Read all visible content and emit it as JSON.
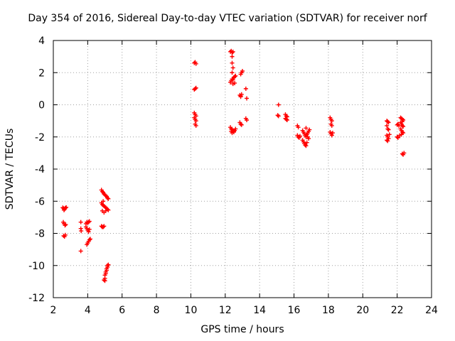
{
  "chart_data": {
    "type": "scatter",
    "title": "Day 354 of 2016, Sidereal Day-to-day VTEC variation (SDTVAR) for receiver norf",
    "xlabel": "GPS time / hours",
    "ylabel": "SDTVAR / TECUs",
    "xlim": [
      2,
      24
    ],
    "ylim": [
      -12,
      4
    ],
    "xticks": [
      2,
      4,
      6,
      8,
      10,
      12,
      14,
      16,
      18,
      20,
      22,
      24
    ],
    "yticks": [
      -12,
      -10,
      -8,
      -6,
      -4,
      -2,
      0,
      2,
      4
    ],
    "grid": true,
    "marker": "+",
    "color": "#ff0000",
    "series": [
      {
        "name": "SDTVAR",
        "points": [
          [
            2.55,
            -6.4
          ],
          [
            2.6,
            -6.45
          ],
          [
            2.65,
            -6.5
          ],
          [
            2.7,
            -6.42
          ],
          [
            2.75,
            -6.38
          ],
          [
            2.62,
            -6.55
          ],
          [
            2.58,
            -7.3
          ],
          [
            2.62,
            -7.4
          ],
          [
            2.68,
            -7.5
          ],
          [
            2.72,
            -7.45
          ],
          [
            2.6,
            -8.15
          ],
          [
            2.65,
            -8.2
          ],
          [
            2.7,
            -8.1
          ],
          [
            3.6,
            -7.3
          ],
          [
            3.6,
            -7.7
          ],
          [
            3.62,
            -7.85
          ],
          [
            3.6,
            -9.1
          ],
          [
            3.9,
            -7.4
          ],
          [
            3.95,
            -7.3
          ],
          [
            4.0,
            -7.35
          ],
          [
            4.05,
            -7.3
          ],
          [
            4.1,
            -7.25
          ],
          [
            3.9,
            -7.6
          ],
          [
            3.95,
            -7.7
          ],
          [
            4.0,
            -7.8
          ],
          [
            4.05,
            -7.9
          ],
          [
            4.1,
            -7.75
          ],
          [
            3.95,
            -8.7
          ],
          [
            4.0,
            -8.6
          ],
          [
            4.05,
            -8.5
          ],
          [
            4.1,
            -8.4
          ],
          [
            4.15,
            -8.35
          ],
          [
            4.8,
            -5.3
          ],
          [
            4.85,
            -5.4
          ],
          [
            4.9,
            -5.45
          ],
          [
            4.95,
            -5.55
          ],
          [
            5.0,
            -5.6
          ],
          [
            5.05,
            -5.65
          ],
          [
            5.1,
            -5.7
          ],
          [
            5.15,
            -5.8
          ],
          [
            5.2,
            -5.85
          ],
          [
            4.8,
            -6.1
          ],
          [
            4.85,
            -6.2
          ],
          [
            4.9,
            -6.25
          ],
          [
            4.95,
            -6.3
          ],
          [
            5.0,
            -6.35
          ],
          [
            5.05,
            -6.4
          ],
          [
            5.1,
            -6.45
          ],
          [
            5.15,
            -6.5
          ],
          [
            5.2,
            -6.55
          ],
          [
            4.85,
            -6.6
          ],
          [
            4.95,
            -6.7
          ],
          [
            5.05,
            -6.6
          ],
          [
            4.9,
            -6.0
          ],
          [
            4.8,
            -7.55
          ],
          [
            4.85,
            -7.6
          ],
          [
            4.9,
            -7.6
          ],
          [
            4.95,
            -7.55
          ],
          [
            4.95,
            -10.9
          ],
          [
            5.0,
            -10.8
          ],
          [
            5.0,
            -10.6
          ],
          [
            5.05,
            -10.5
          ],
          [
            5.05,
            -10.4
          ],
          [
            5.1,
            -10.3
          ],
          [
            5.1,
            -10.2
          ],
          [
            5.15,
            -10.1
          ],
          [
            5.15,
            -10.0
          ],
          [
            5.2,
            -9.95
          ],
          [
            5.0,
            -10.95
          ],
          [
            10.2,
            2.6
          ],
          [
            10.25,
            2.65
          ],
          [
            10.3,
            2.55
          ],
          [
            10.2,
            0.95
          ],
          [
            10.25,
            1.0
          ],
          [
            10.3,
            1.05
          ],
          [
            10.2,
            -0.5
          ],
          [
            10.25,
            -0.6
          ],
          [
            10.3,
            -0.7
          ],
          [
            10.2,
            -0.8
          ],
          [
            10.25,
            -0.9
          ],
          [
            10.3,
            -1.0
          ],
          [
            10.25,
            -1.2
          ],
          [
            10.3,
            -1.3
          ],
          [
            12.3,
            3.3
          ],
          [
            12.35,
            3.35
          ],
          [
            12.4,
            3.25
          ],
          [
            12.45,
            3.3
          ],
          [
            12.4,
            3.0
          ],
          [
            12.4,
            2.6
          ],
          [
            12.45,
            2.3
          ],
          [
            12.4,
            2.0
          ],
          [
            12.3,
            1.4
          ],
          [
            12.35,
            1.5
          ],
          [
            12.4,
            1.6
          ],
          [
            12.45,
            1.55
          ],
          [
            12.5,
            1.7
          ],
          [
            12.55,
            1.75
          ],
          [
            12.6,
            1.8
          ],
          [
            12.45,
            1.3
          ],
          [
            12.55,
            1.35
          ],
          [
            12.3,
            -1.4
          ],
          [
            12.35,
            -1.5
          ],
          [
            12.4,
            -1.55
          ],
          [
            12.45,
            -1.6
          ],
          [
            12.5,
            -1.65
          ],
          [
            12.55,
            -1.6
          ],
          [
            12.6,
            -1.5
          ],
          [
            12.4,
            -1.75
          ],
          [
            12.5,
            -1.7
          ],
          [
            12.35,
            -1.65
          ],
          [
            12.9,
            1.9
          ],
          [
            12.95,
            2.0
          ],
          [
            13.0,
            2.1
          ],
          [
            12.85,
            0.6
          ],
          [
            12.9,
            0.55
          ],
          [
            12.95,
            0.65
          ],
          [
            12.9,
            0.5
          ],
          [
            12.85,
            -1.1
          ],
          [
            12.9,
            -1.2
          ],
          [
            12.95,
            -1.25
          ],
          [
            13.2,
            1.0
          ],
          [
            13.25,
            0.4
          ],
          [
            13.2,
            -0.85
          ],
          [
            13.25,
            -0.95
          ],
          [
            15.1,
            0.0
          ],
          [
            15.05,
            -0.65
          ],
          [
            15.1,
            -0.7
          ],
          [
            15.5,
            -0.6
          ],
          [
            15.55,
            -0.7
          ],
          [
            15.6,
            -0.75
          ],
          [
            15.5,
            -0.85
          ],
          [
            15.55,
            -0.9
          ],
          [
            15.6,
            -0.95
          ],
          [
            16.2,
            -1.3
          ],
          [
            16.25,
            -1.4
          ],
          [
            16.2,
            -1.9
          ],
          [
            16.25,
            -2.0
          ],
          [
            16.3,
            -2.05
          ],
          [
            16.35,
            -1.95
          ],
          [
            16.5,
            -1.6
          ],
          [
            16.55,
            -1.7
          ],
          [
            16.6,
            -1.8
          ],
          [
            16.65,
            -1.9
          ],
          [
            16.7,
            -2.0
          ],
          [
            16.75,
            -1.85
          ],
          [
            16.8,
            -1.75
          ],
          [
            16.85,
            -1.65
          ],
          [
            16.9,
            -1.55
          ],
          [
            16.7,
            -1.45
          ],
          [
            16.5,
            -2.2
          ],
          [
            16.55,
            -2.3
          ],
          [
            16.6,
            -2.4
          ],
          [
            16.65,
            -2.5
          ],
          [
            16.7,
            -2.55
          ],
          [
            16.75,
            -2.35
          ],
          [
            16.85,
            -2.1
          ],
          [
            16.8,
            -2.0
          ],
          [
            18.1,
            -0.8
          ],
          [
            18.15,
            -0.9
          ],
          [
            18.2,
            -1.0
          ],
          [
            18.15,
            -1.2
          ],
          [
            18.2,
            -1.3
          ],
          [
            18.1,
            -1.7
          ],
          [
            18.15,
            -1.8
          ],
          [
            18.2,
            -1.9
          ],
          [
            18.25,
            -1.75
          ],
          [
            21.4,
            -1.0
          ],
          [
            21.45,
            -1.05
          ],
          [
            21.5,
            -1.1
          ],
          [
            21.4,
            -1.3
          ],
          [
            21.45,
            -1.5
          ],
          [
            21.5,
            -1.55
          ],
          [
            21.4,
            -1.9
          ],
          [
            21.45,
            -2.0
          ],
          [
            21.5,
            -2.1
          ],
          [
            21.4,
            -2.2
          ],
          [
            21.45,
            -2.25
          ],
          [
            21.55,
            -1.85
          ],
          [
            22.0,
            -1.25
          ],
          [
            22.05,
            -1.2
          ],
          [
            22.1,
            -1.3
          ],
          [
            22.0,
            -2.0
          ],
          [
            22.05,
            -2.05
          ],
          [
            22.2,
            -0.8
          ],
          [
            22.25,
            -0.85
          ],
          [
            22.3,
            -0.9
          ],
          [
            22.35,
            -0.95
          ],
          [
            22.2,
            -1.1
          ],
          [
            22.25,
            -1.2
          ],
          [
            22.3,
            -1.3
          ],
          [
            22.35,
            -1.35
          ],
          [
            22.3,
            -1.05
          ],
          [
            22.2,
            -1.5
          ],
          [
            22.25,
            -1.6
          ],
          [
            22.3,
            -1.7
          ],
          [
            22.35,
            -1.75
          ],
          [
            22.25,
            -1.85
          ],
          [
            22.15,
            -1.9
          ],
          [
            22.3,
            -3.05
          ],
          [
            22.35,
            -3.1
          ],
          [
            22.4,
            -3.0
          ]
        ]
      }
    ]
  }
}
